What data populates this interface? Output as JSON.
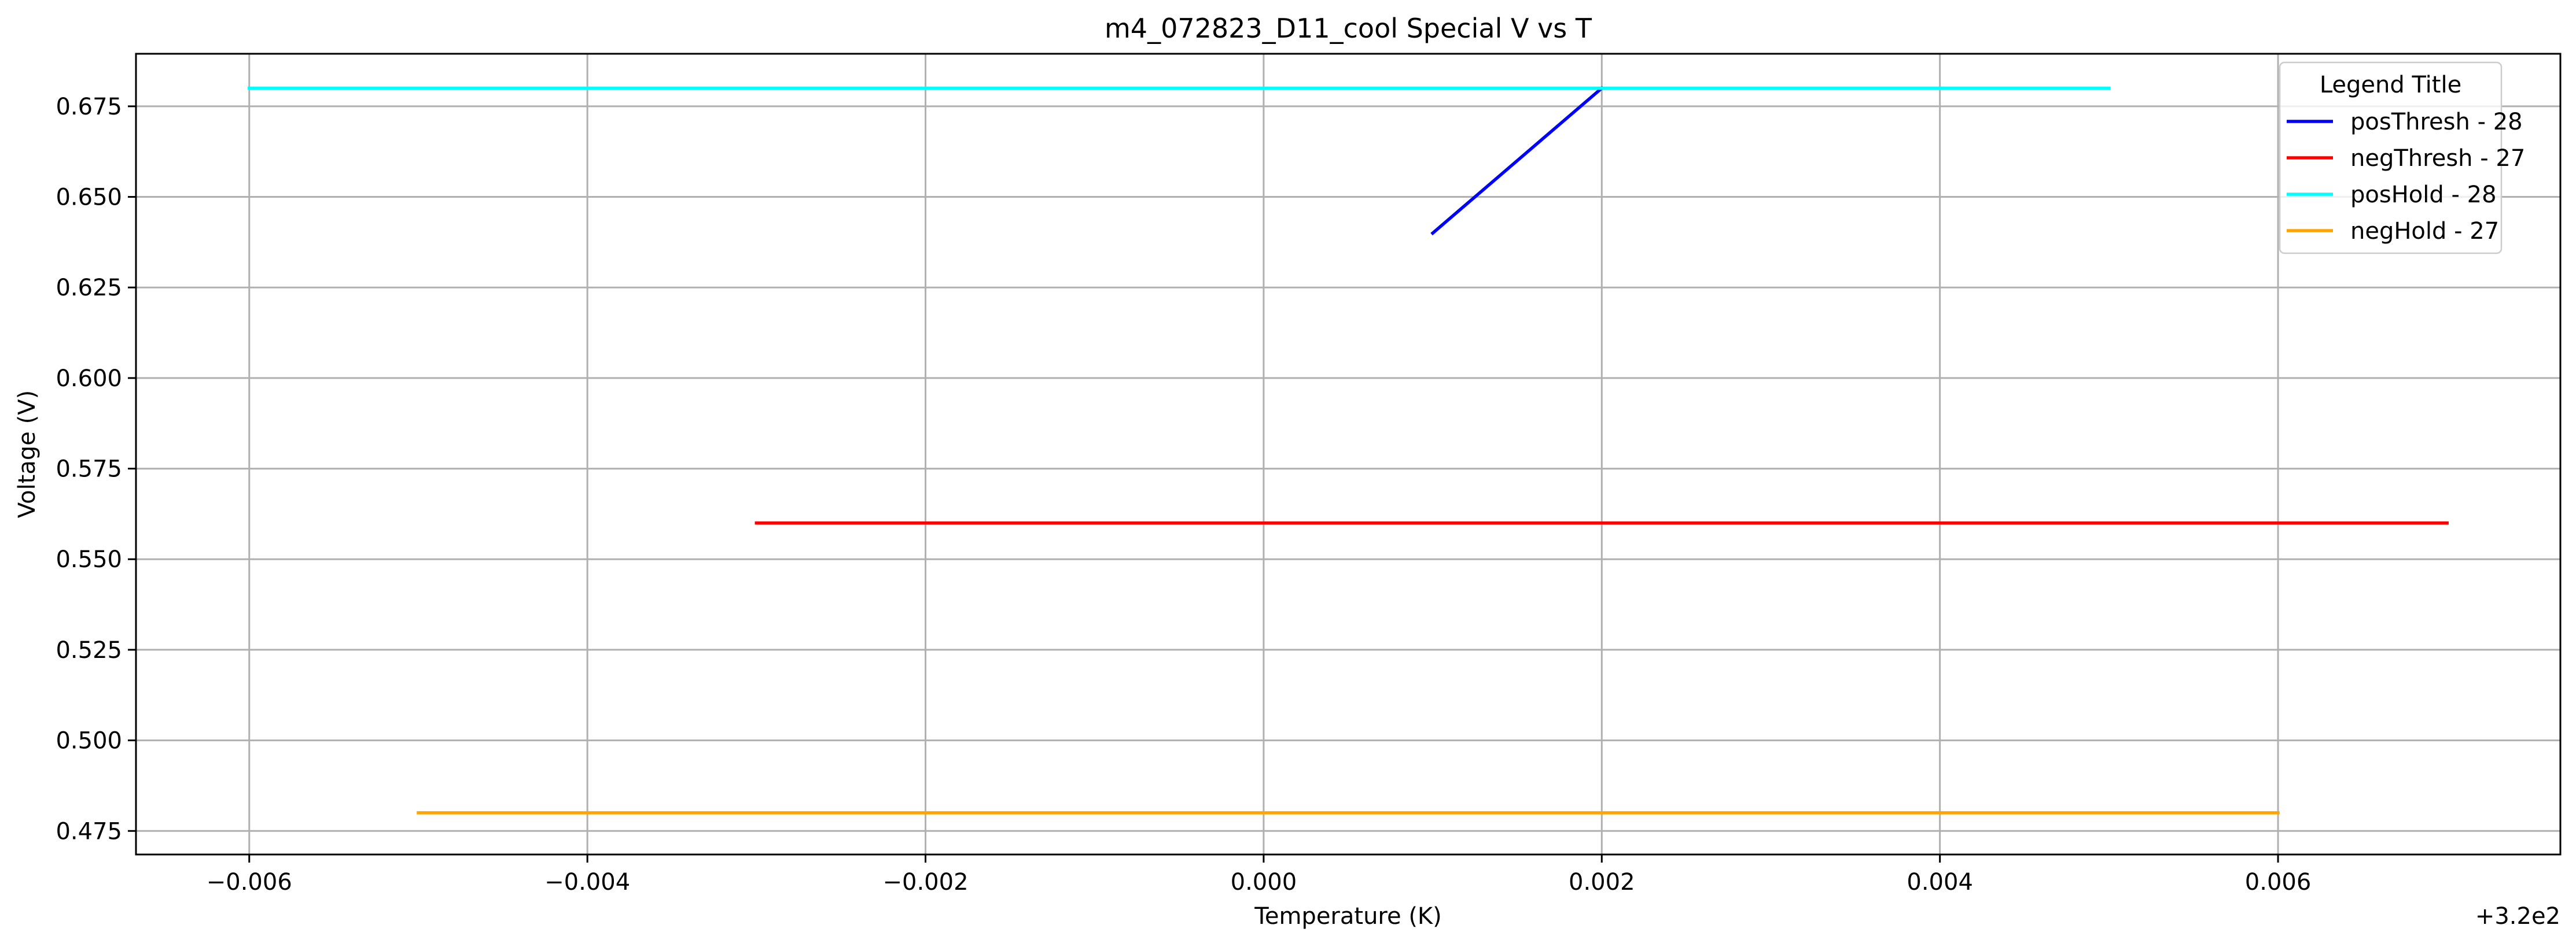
{
  "chart_data": {
    "type": "line",
    "title": "m4_072823_D11_cool Special V vs T",
    "xlabel": "Temperature (K)",
    "ylabel": "Voltage (V)",
    "x_offset_label": "+3.2e2",
    "x_offset": 320,
    "xlim": [
      -0.00667,
      0.00767
    ],
    "ylim": [
      0.4685,
      0.6895
    ],
    "xticks": [
      -0.006,
      -0.004,
      -0.002,
      0.0,
      0.002,
      0.004,
      0.006
    ],
    "xtick_labels": [
      "−0.006",
      "−0.004",
      "−0.002",
      "0.000",
      "0.002",
      "0.004",
      "0.006"
    ],
    "yticks": [
      0.475,
      0.5,
      0.525,
      0.55,
      0.575,
      0.6,
      0.625,
      0.65,
      0.675
    ],
    "ytick_labels": [
      "0.475",
      "0.500",
      "0.525",
      "0.550",
      "0.575",
      "0.600",
      "0.625",
      "0.650",
      "0.675"
    ],
    "grid": true,
    "legend": {
      "title": "Legend Title",
      "placement": "top-right"
    },
    "series": [
      {
        "name": "posThresh - 28",
        "color": "#0000ff",
        "x": [
          0.001,
          0.002
        ],
        "y": [
          0.64,
          0.68
        ]
      },
      {
        "name": "negThresh - 27",
        "color": "#ff0000",
        "x": [
          -0.003,
          0.003,
          0.007
        ],
        "y": [
          0.56,
          0.56,
          0.56
        ]
      },
      {
        "name": "posHold - 28",
        "color": "#00ffff",
        "x": [
          -0.006,
          0.003,
          0.005
        ],
        "y": [
          0.68,
          0.68,
          0.68
        ]
      },
      {
        "name": "negHold - 27",
        "color": "#ffa500",
        "x": [
          -0.005,
          0.003,
          0.006
        ],
        "y": [
          0.48,
          0.48,
          0.48
        ]
      }
    ]
  }
}
